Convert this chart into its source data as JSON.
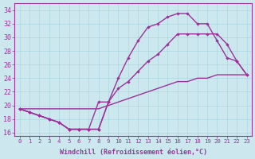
{
  "x": [
    0,
    1,
    2,
    3,
    4,
    5,
    6,
    7,
    8,
    9,
    10,
    11,
    12,
    13,
    14,
    15,
    16,
    17,
    18,
    19,
    20,
    21,
    22,
    23
  ],
  "curve_upper": [
    19.5,
    19.0,
    18.5,
    18.0,
    17.5,
    16.5,
    16.5,
    16.5,
    16.5,
    20.5,
    24.0,
    27.0,
    29.5,
    31.5,
    32.0,
    33.0,
    33.5,
    33.5,
    32.0,
    32.0,
    29.5,
    27.0,
    26.5,
    24.5
  ],
  "curve_middle": [
    19.5,
    19.0,
    18.5,
    18.0,
    17.5,
    16.5,
    16.5,
    16.5,
    16.5,
    20.5,
    22.5,
    23.5,
    25.0,
    26.5,
    27.5,
    29.0,
    30.5,
    30.5,
    30.5,
    30.5,
    30.5,
    29.0,
    26.5,
    24.5
  ],
  "curve_diag": [
    19.5,
    19.5,
    19.5,
    19.5,
    19.5,
    19.5,
    19.5,
    19.5,
    19.5,
    20.0,
    20.5,
    21.0,
    21.5,
    22.0,
    22.5,
    23.0,
    23.5,
    23.5,
    24.0,
    24.0,
    24.5,
    24.5,
    24.5,
    24.5
  ],
  "curve_dip": [
    19.5,
    19.0,
    18.5,
    18.0,
    17.5,
    16.5,
    16.5,
    16.5,
    20.5,
    20.5,
    null,
    null,
    null,
    null,
    null,
    null,
    null,
    null,
    null,
    null,
    null,
    null,
    null,
    null
  ],
  "bg_color": "#cce8ee",
  "line_color": "#993399",
  "grid_color": "#aad8dd",
  "ylabel_values": [
    16,
    18,
    20,
    22,
    24,
    26,
    28,
    30,
    32,
    34
  ],
  "xlabel": "Windchill (Refroidissement éolien,°C)",
  "ylim": [
    15.5,
    35.0
  ],
  "xlim": [
    -0.5,
    23.5
  ]
}
